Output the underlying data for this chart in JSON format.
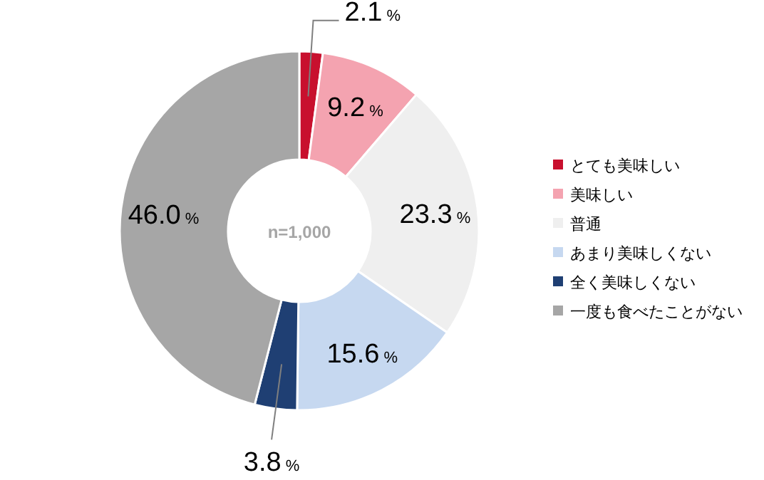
{
  "chart_data": {
    "type": "donut",
    "categories": [
      "とても美味しい",
      "美味しい",
      "普通",
      "あまり美味しくない",
      "全く美味しくない",
      "一度も食べたことがない"
    ],
    "values": [
      2.1,
      9.2,
      23.3,
      15.6,
      3.8,
      46.0
    ],
    "colors": [
      "#c8102e",
      "#f4a3b0",
      "#efefef",
      "#c6d8f0",
      "#1f3f73",
      "#a6a6a6"
    ],
    "value_labels": [
      "2.1%",
      "9.2%",
      "23.3%",
      "15.6%",
      "3.8%",
      "46.0%"
    ],
    "annotations": [
      "n=1,000"
    ],
    "legend": "right"
  }
}
